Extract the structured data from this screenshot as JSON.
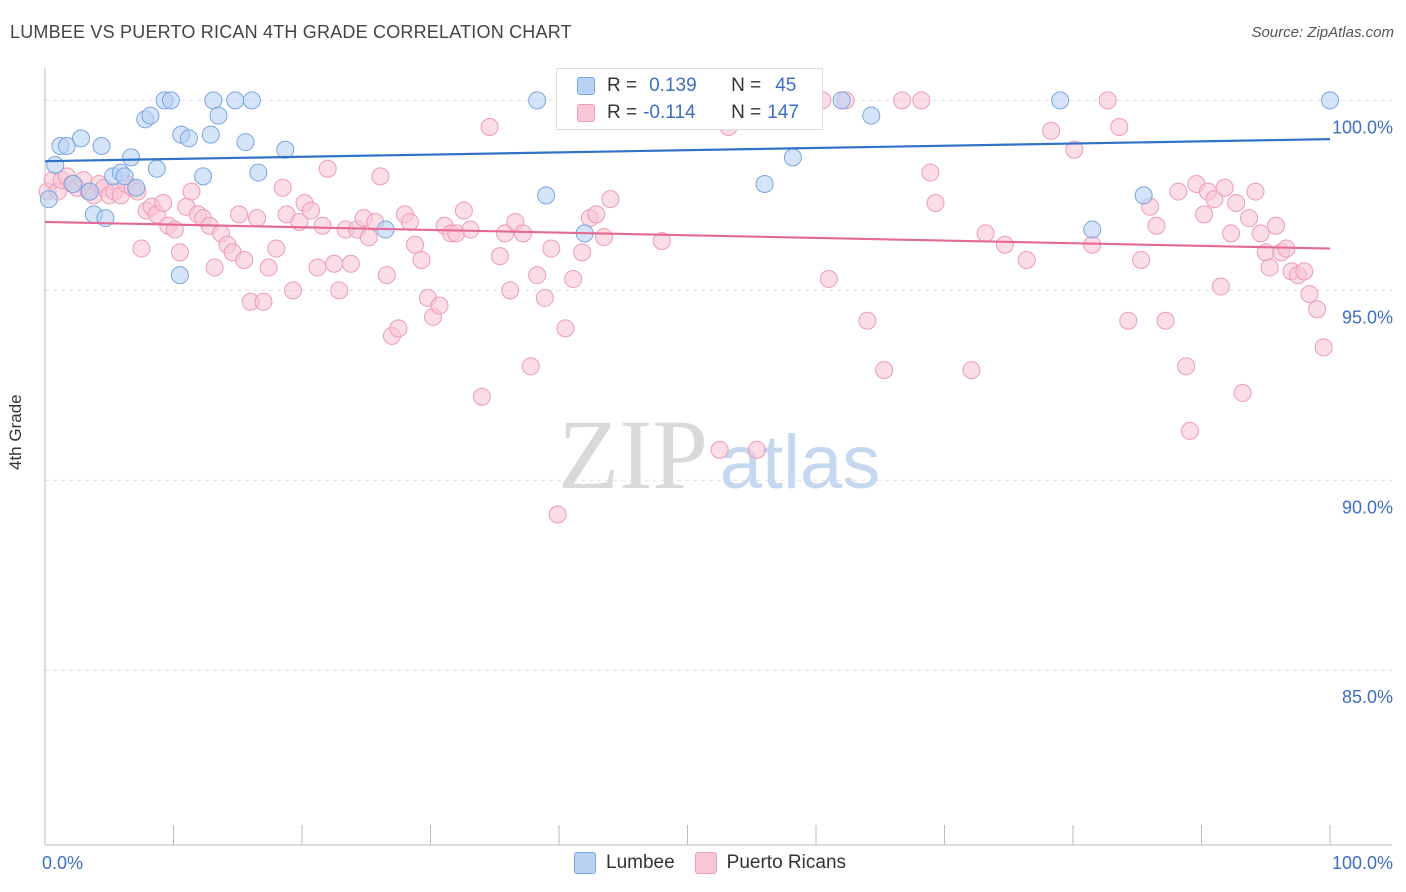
{
  "title": "LUMBEE VS PUERTO RICAN 4TH GRADE CORRELATION CHART",
  "source": "Source: ZipAtlas.com",
  "watermark": {
    "zip": "ZIP",
    "atlas": "atlas"
  },
  "colors": {
    "lumbee_fill": "#b9d2f3",
    "lumbee_stroke": "#7aa6e0",
    "lumbee_line": "#2f72c8",
    "pr_fill": "#f8c7d6",
    "pr_stroke": "#ee9bb6",
    "pr_line": "#e46a96",
    "axis_text": "#3d6fc4",
    "grid": "#dddddd"
  },
  "legend": {
    "rows": [
      {
        "r_label": "R =",
        "r_value": "0.139",
        "n_label": "N =",
        "n_value": "45"
      },
      {
        "r_label": "R =",
        "r_value": "-0.114",
        "n_label": "N =",
        "n_value": "147"
      }
    ]
  },
  "chart_data": {
    "type": "scatter",
    "title": "LUMBEE VS PUERTO RICAN 4TH GRADE CORRELATION CHART",
    "xlabel": "",
    "ylabel": "4th Grade",
    "xlim": [
      0,
      100
    ],
    "ylim": [
      80.4,
      100.8
    ],
    "x_tick_labels": [
      "0.0%",
      "100.0%"
    ],
    "y_ticks": [
      100,
      95,
      90,
      85
    ],
    "y_tick_labels": [
      "100.0%",
      "95.0%",
      "90.0%",
      "85.0%"
    ],
    "grid": true,
    "legend_position": "bottom",
    "series": [
      {
        "name": "Lumbee",
        "trend": {
          "x": [
            0,
            100
          ],
          "y": [
            98.4,
            98.98
          ]
        },
        "points": [
          [
            0.3,
            97.4
          ],
          [
            0.8,
            98.3
          ],
          [
            1.2,
            98.8
          ],
          [
            1.7,
            98.8
          ],
          [
            2.2,
            97.8
          ],
          [
            2.8,
            99.0
          ],
          [
            3.5,
            97.6
          ],
          [
            3.8,
            97.0
          ],
          [
            4.4,
            98.8
          ],
          [
            4.7,
            96.9
          ],
          [
            5.3,
            98.0
          ],
          [
            5.9,
            98.1
          ],
          [
            6.2,
            98.0
          ],
          [
            6.7,
            98.5
          ],
          [
            7.1,
            97.7
          ],
          [
            7.8,
            99.5
          ],
          [
            8.2,
            99.6
          ],
          [
            8.7,
            98.2
          ],
          [
            9.3,
            100.0
          ],
          [
            9.8,
            100.0
          ],
          [
            10.5,
            95.4
          ],
          [
            10.6,
            99.1
          ],
          [
            11.2,
            99.0
          ],
          [
            12.3,
            98.0
          ],
          [
            12.9,
            99.1
          ],
          [
            13.1,
            100.0
          ],
          [
            13.5,
            99.6
          ],
          [
            14.8,
            100.0
          ],
          [
            15.6,
            98.9
          ],
          [
            16.1,
            100.0
          ],
          [
            16.6,
            98.1
          ],
          [
            18.7,
            98.7
          ],
          [
            26.5,
            96.6
          ],
          [
            38.3,
            100.0
          ],
          [
            39.0,
            97.5
          ],
          [
            42.0,
            96.5
          ],
          [
            54.0,
            100.0
          ],
          [
            56.0,
            97.8
          ],
          [
            58.2,
            98.5
          ],
          [
            62.0,
            100.0
          ],
          [
            64.3,
            99.6
          ],
          [
            79.0,
            100.0
          ],
          [
            81.5,
            96.6
          ],
          [
            85.5,
            97.5
          ],
          [
            100.0,
            100.0
          ]
        ]
      },
      {
        "name": "Puerto Ricans",
        "trend": {
          "x": [
            0,
            100
          ],
          "y": [
            96.8,
            96.1
          ]
        },
        "points": [
          [
            0.2,
            97.6
          ],
          [
            0.6,
            97.9
          ],
          [
            1.0,
            97.6
          ],
          [
            1.3,
            97.9
          ],
          [
            1.7,
            98.0
          ],
          [
            2.1,
            97.8
          ],
          [
            2.5,
            97.7
          ],
          [
            3.0,
            97.9
          ],
          [
            3.4,
            97.6
          ],
          [
            3.8,
            97.5
          ],
          [
            4.2,
            97.8
          ],
          [
            4.6,
            97.7
          ],
          [
            5.0,
            97.5
          ],
          [
            5.4,
            97.6
          ],
          [
            5.9,
            97.5
          ],
          [
            6.3,
            97.8
          ],
          [
            6.8,
            97.7
          ],
          [
            7.2,
            97.6
          ],
          [
            7.5,
            96.1
          ],
          [
            7.9,
            97.1
          ],
          [
            8.3,
            97.2
          ],
          [
            8.7,
            97.0
          ],
          [
            9.2,
            97.3
          ],
          [
            9.6,
            96.7
          ],
          [
            10.1,
            96.6
          ],
          [
            10.5,
            96.0
          ],
          [
            11.0,
            97.2
          ],
          [
            11.4,
            97.6
          ],
          [
            11.9,
            97.0
          ],
          [
            12.3,
            96.9
          ],
          [
            12.8,
            96.7
          ],
          [
            13.2,
            95.6
          ],
          [
            13.7,
            96.5
          ],
          [
            14.2,
            96.2
          ],
          [
            14.6,
            96.0
          ],
          [
            15.1,
            97.0
          ],
          [
            15.5,
            95.8
          ],
          [
            16.0,
            94.7
          ],
          [
            16.5,
            96.9
          ],
          [
            17.0,
            94.7
          ],
          [
            17.4,
            95.6
          ],
          [
            18.0,
            96.1
          ],
          [
            18.5,
            97.7
          ],
          [
            18.8,
            97.0
          ],
          [
            19.3,
            95.0
          ],
          [
            19.8,
            96.8
          ],
          [
            20.2,
            97.3
          ],
          [
            20.7,
            97.1
          ],
          [
            21.2,
            95.6
          ],
          [
            21.6,
            96.7
          ],
          [
            22.0,
            98.2
          ],
          [
            22.5,
            95.7
          ],
          [
            22.9,
            95.0
          ],
          [
            23.4,
            96.6
          ],
          [
            23.8,
            95.7
          ],
          [
            24.3,
            96.6
          ],
          [
            24.8,
            96.9
          ],
          [
            25.2,
            96.4
          ],
          [
            25.7,
            96.8
          ],
          [
            26.1,
            98.0
          ],
          [
            26.6,
            95.4
          ],
          [
            27.0,
            93.8
          ],
          [
            27.5,
            94.0
          ],
          [
            28.0,
            97.0
          ],
          [
            28.4,
            96.8
          ],
          [
            28.8,
            96.2
          ],
          [
            29.3,
            95.8
          ],
          [
            29.8,
            94.8
          ],
          [
            30.2,
            94.3
          ],
          [
            30.7,
            94.6
          ],
          [
            31.1,
            96.7
          ],
          [
            31.6,
            96.5
          ],
          [
            32.0,
            96.5
          ],
          [
            32.6,
            97.1
          ],
          [
            33.1,
            96.6
          ],
          [
            34.0,
            92.2
          ],
          [
            34.6,
            99.3
          ],
          [
            35.4,
            95.9
          ],
          [
            35.8,
            96.5
          ],
          [
            36.2,
            95.0
          ],
          [
            36.6,
            96.8
          ],
          [
            37.2,
            96.5
          ],
          [
            37.8,
            93.0
          ],
          [
            38.3,
            95.4
          ],
          [
            38.9,
            94.8
          ],
          [
            39.4,
            96.1
          ],
          [
            39.9,
            89.1
          ],
          [
            40.5,
            94.0
          ],
          [
            41.1,
            95.3
          ],
          [
            41.8,
            96.0
          ],
          [
            42.4,
            96.9
          ],
          [
            42.9,
            97.0
          ],
          [
            43.5,
            96.4
          ],
          [
            44.0,
            97.4
          ],
          [
            44.7,
            100.0
          ],
          [
            45.0,
            100.0
          ],
          [
            47.2,
            100.0
          ],
          [
            48.0,
            96.3
          ],
          [
            48.6,
            100.0
          ],
          [
            52.5,
            90.8
          ],
          [
            53.2,
            99.3
          ],
          [
            55.4,
            90.8
          ],
          [
            60.5,
            100.0
          ],
          [
            61.0,
            95.3
          ],
          [
            62.3,
            100.0
          ],
          [
            64.0,
            94.2
          ],
          [
            65.3,
            92.9
          ],
          [
            66.7,
            100.0
          ],
          [
            68.2,
            100.0
          ],
          [
            68.9,
            98.1
          ],
          [
            69.3,
            97.3
          ],
          [
            72.1,
            92.9
          ],
          [
            73.2,
            96.5
          ],
          [
            74.7,
            96.2
          ],
          [
            76.4,
            95.8
          ],
          [
            78.3,
            99.2
          ],
          [
            80.1,
            98.7
          ],
          [
            81.5,
            96.2
          ],
          [
            82.7,
            100.0
          ],
          [
            83.6,
            99.3
          ],
          [
            84.3,
            94.2
          ],
          [
            85.3,
            95.8
          ],
          [
            86.0,
            97.2
          ],
          [
            86.5,
            96.7
          ],
          [
            87.2,
            94.2
          ],
          [
            88.2,
            97.6
          ],
          [
            88.8,
            93.0
          ],
          [
            89.1,
            91.3
          ],
          [
            89.6,
            97.8
          ],
          [
            90.2,
            97.0
          ],
          [
            90.5,
            97.6
          ],
          [
            91.0,
            97.4
          ],
          [
            91.5,
            95.1
          ],
          [
            91.8,
            97.7
          ],
          [
            92.3,
            96.5
          ],
          [
            92.7,
            97.3
          ],
          [
            93.2,
            92.3
          ],
          [
            93.7,
            96.9
          ],
          [
            94.2,
            97.6
          ],
          [
            94.6,
            96.5
          ],
          [
            95.0,
            96.0
          ],
          [
            95.3,
            95.6
          ],
          [
            95.8,
            96.7
          ],
          [
            96.2,
            96.0
          ],
          [
            96.6,
            96.1
          ],
          [
            97.0,
            95.5
          ],
          [
            97.5,
            95.4
          ],
          [
            98.0,
            95.5
          ],
          [
            98.4,
            94.9
          ],
          [
            99.0,
            94.5
          ],
          [
            99.5,
            93.5
          ]
        ]
      }
    ]
  }
}
